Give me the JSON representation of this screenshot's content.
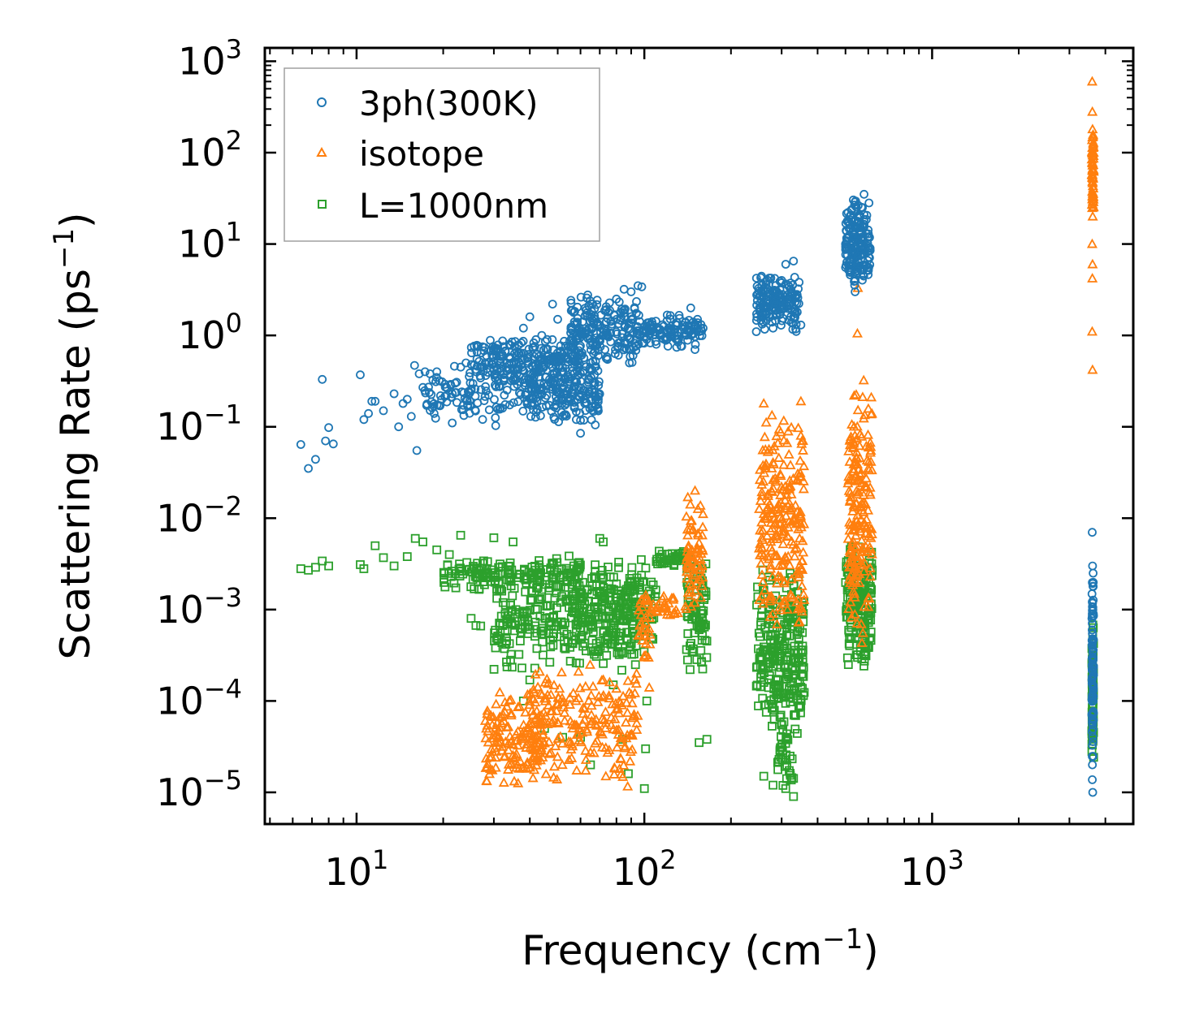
{
  "chart_data": {
    "type": "scatter",
    "xscale": "log",
    "yscale": "log",
    "xlabel": "Frequency (cm",
    "xlabel_sup": "−1",
    "xlabel_end": ")",
    "ylabel": "Scattering Rate (ps",
    "ylabel_sup": "−1",
    "ylabel_end": ")",
    "xlim": [
      4.8,
      5000
    ],
    "ylim": [
      4.5e-06,
      1400
    ],
    "x_ticks": [
      {
        "value": 10,
        "base": "10",
        "exp": "1"
      },
      {
        "value": 100,
        "base": "10",
        "exp": "2"
      },
      {
        "value": 1000,
        "base": "10",
        "exp": "3"
      }
    ],
    "y_ticks": [
      {
        "value": 1000,
        "base": "10",
        "exp": "3"
      },
      {
        "value": 100,
        "base": "10",
        "exp": "2"
      },
      {
        "value": 10,
        "base": "10",
        "exp": "1"
      },
      {
        "value": 1,
        "base": "10",
        "exp": "0"
      },
      {
        "value": 0.1,
        "base": "10",
        "exp": "−1"
      },
      {
        "value": 0.01,
        "base": "10",
        "exp": "−2"
      },
      {
        "value": 0.001,
        "base": "10",
        "exp": "−3"
      },
      {
        "value": 0.0001,
        "base": "10",
        "exp": "−4"
      },
      {
        "value": 1e-05,
        "base": "10",
        "exp": "−5"
      }
    ],
    "legend_position": "top-left",
    "series": [
      {
        "name": "3ph(300K)",
        "marker": "circle",
        "color": "#1f77b4",
        "points": [
          [
            6.4,
            0.064
          ],
          [
            6.8,
            0.035
          ],
          [
            7.2,
            0.044
          ],
          [
            7.6,
            0.33
          ],
          [
            7.8,
            0.07
          ],
          [
            8.0,
            0.098
          ],
          [
            8.3,
            0.065
          ],
          [
            10.3,
            0.37
          ],
          [
            10.6,
            0.12
          ],
          [
            11.0,
            0.14
          ],
          [
            11.3,
            0.19
          ],
          [
            11.6,
            0.19
          ],
          [
            12.4,
            0.15
          ],
          [
            13.5,
            0.23
          ],
          [
            14.0,
            0.1
          ],
          [
            14.5,
            0.18
          ],
          [
            15.0,
            0.2
          ],
          [
            15.5,
            0.13
          ],
          [
            15.9,
            0.47
          ],
          [
            16.2,
            0.055
          ],
          [
            16.5,
            0.38
          ],
          [
            17.0,
            0.27
          ],
          [
            17.3,
            0.4
          ],
          [
            18.0,
            0.38
          ],
          [
            18.6,
            0.14
          ],
          [
            19.0,
            0.4
          ],
          [
            19.5,
            0.17
          ],
          [
            20.5,
            0.22
          ],
          [
            21.5,
            0.11
          ],
          [
            22.0,
            0.3
          ],
          [
            23.0,
            0.45
          ],
          [
            24.0,
            0.5
          ],
          [
            25.0,
            0.25
          ],
          [
            26.0,
            0.4
          ],
          [
            27.0,
            0.45
          ],
          [
            28.0,
            0.5
          ],
          [
            30.0,
            0.42
          ],
          [
            32.0,
            0.6
          ],
          [
            34.0,
            0.8
          ],
          [
            36.0,
            0.5
          ],
          [
            38.0,
            1.2
          ],
          [
            40.0,
            1.6
          ],
          [
            42.0,
            0.9
          ],
          [
            44.0,
            1.0
          ],
          [
            46.0,
            0.7
          ],
          [
            48.0,
            2.2
          ],
          [
            50.0,
            1.5
          ],
          [
            52.0,
            0.4
          ],
          [
            55.0,
            0.2
          ],
          [
            58.0,
            0.12
          ],
          [
            60.0,
            0.085
          ],
          [
            62.0,
            0.25
          ],
          [
            65.0,
            0.5
          ],
          [
            70.0,
            0.9
          ],
          [
            75.0,
            1.8
          ],
          [
            80.0,
            2.5
          ],
          [
            85.0,
            3.2
          ],
          [
            90.0,
            3.0
          ],
          [
            95.0,
            3.5
          ],
          [
            98.0,
            3.4
          ],
          [
            105.0,
            1.2
          ],
          [
            110.0,
            0.8
          ],
          [
            120.0,
            1.1
          ],
          [
            130.0,
            1.3
          ],
          [
            140.0,
            1.0
          ],
          [
            145.0,
            2.0
          ],
          [
            150.0,
            0.7
          ],
          [
            155.0,
            1.1
          ],
          [
            160.0,
            1.2
          ],
          [
            245.0,
            1.1
          ],
          [
            260.0,
            2.0
          ],
          [
            280.0,
            1.2
          ],
          [
            300.0,
            4.0
          ],
          [
            310.0,
            6.0
          ],
          [
            320.0,
            2.5
          ],
          [
            330.0,
            6.5
          ],
          [
            340.0,
            1.8
          ],
          [
            350.0,
            1.3
          ],
          [
            500.0,
            10.0
          ],
          [
            520.0,
            15.0
          ],
          [
            540.0,
            3.0
          ],
          [
            560.0,
            20.0
          ],
          [
            580.0,
            35.0
          ],
          [
            600.0,
            12.0
          ],
          [
            3600.0,
            0.007
          ],
          [
            3610.0,
            0.003
          ],
          [
            3620.0,
            0.001
          ],
          [
            3630.0,
            0.0001
          ],
          [
            3605.0,
            2e-05
          ],
          [
            3615.0,
            1e-05
          ]
        ],
        "clusters": [
          {
            "x": [
              17,
              40
            ],
            "y": [
              0.1,
              0.5
            ],
            "n": 110
          },
          {
            "x": [
              25,
              60
            ],
            "y": [
              0.25,
              1.0
            ],
            "n": 220
          },
          {
            "x": [
              40,
              70
            ],
            "y": [
              0.1,
              0.6
            ],
            "n": 200
          },
          {
            "x": [
              55,
              95
            ],
            "y": [
              0.4,
              3.0
            ],
            "n": 200
          },
          {
            "x": [
              95,
              160
            ],
            "y": [
              0.7,
              1.8
            ],
            "n": 110
          },
          {
            "x": [
              245,
              345
            ],
            "y": [
              1.0,
              5.0
            ],
            "n": 160
          },
          {
            "x": [
              500,
              610
            ],
            "y": [
              3.0,
              35.0
            ],
            "n": 180
          },
          {
            "x": [
              3590,
              3640
            ],
            "y": [
              1e-05,
              0.006
            ],
            "n": 90
          }
        ]
      },
      {
        "name": "isotope",
        "marker": "triangle",
        "color": "#ff7f0e",
        "points": [
          [
            3600,
            600
          ],
          [
            3605,
            280
          ],
          [
            3610,
            180
          ],
          [
            3600,
            100
          ],
          [
            3615,
            20
          ],
          [
            3600,
            10
          ],
          [
            3610,
            6
          ],
          [
            3605,
            4.2
          ],
          [
            3600,
            1.1
          ],
          [
            3610,
            0.42
          ],
          [
            550,
            1.05
          ],
          [
            552,
            3.3
          ],
          [
            350,
            0.19
          ],
          [
            352,
            0.065
          ],
          [
            260,
            0.18
          ],
          [
            150,
            0.02
          ],
          [
            100,
            0.0003
          ],
          [
            104,
            0.00014
          ]
        ],
        "clusters": [
          {
            "x": [
              3590,
              3640
            ],
            "y": [
              20,
              200
            ],
            "n": 60
          },
          {
            "x": [
              28,
              45
            ],
            "y": [
              1e-05,
              0.00015
            ],
            "n": 140
          },
          {
            "x": [
              40,
              95
            ],
            "y": [
              1e-05,
              0.0003
            ],
            "n": 220
          },
          {
            "x": [
              95,
              105
            ],
            "y": [
              0.0002,
              0.002
            ],
            "n": 30
          },
          {
            "x": [
              140,
              160
            ],
            "y": [
              0.0008,
              0.02
            ],
            "n": 70
          },
          {
            "x": [
              250,
              360
            ],
            "y": [
              0.0005,
              0.15
            ],
            "n": 240
          },
          {
            "x": [
              510,
              620
            ],
            "y": [
              0.0004,
              0.4
            ],
            "n": 190
          },
          {
            "x": [
              105,
              140
            ],
            "y": [
              0.0008,
              0.0015
            ],
            "n": 30
          }
        ]
      },
      {
        "name": "L=1000nm",
        "marker": "square",
        "color": "#2ca02c",
        "points": [
          [
            6.4,
            0.0028
          ],
          [
            6.8,
            0.0027
          ],
          [
            7.2,
            0.0029
          ],
          [
            7.6,
            0.0034
          ],
          [
            8.0,
            0.003
          ],
          [
            10.3,
            0.0031
          ],
          [
            10.6,
            0.0028
          ],
          [
            11.6,
            0.005
          ],
          [
            12.4,
            0.0037
          ],
          [
            13.5,
            0.003
          ],
          [
            15.0,
            0.0038
          ],
          [
            16.0,
            0.006
          ],
          [
            17.0,
            0.0055
          ],
          [
            19.0,
            0.0045
          ],
          [
            21.0,
            0.004
          ],
          [
            23.0,
            0.0065
          ],
          [
            25.0,
            0.0008
          ],
          [
            26.0,
            0.00067
          ],
          [
            27.0,
            0.00066
          ],
          [
            30.0,
            0.0061
          ],
          [
            35.0,
            0.0055
          ],
          [
            38.0,
            0.0001
          ],
          [
            40.0,
            0.00017
          ],
          [
            45.0,
            5e-05
          ],
          [
            52.0,
            4e-05
          ],
          [
            60.0,
            4e-05
          ],
          [
            65.0,
            2e-05
          ],
          [
            70.0,
            0.006
          ],
          [
            72.0,
            0.0055
          ],
          [
            78.0,
            0.00015
          ],
          [
            84.0,
            3.8e-05
          ],
          [
            88.0,
            1.6e-05
          ],
          [
            100.0,
            1.1e-05
          ],
          [
            101.0,
            3e-05
          ],
          [
            102.0,
            0.0001
          ],
          [
            155.0,
            3.5e-05
          ],
          [
            165.0,
            3.8e-05
          ],
          [
            260.0,
            1.5e-05
          ],
          [
            280.0,
            1.2e-05
          ],
          [
            310.0,
            1.1e-05
          ],
          [
            330.0,
            9e-06
          ]
        ],
        "clusters": [
          {
            "x": [
              20,
              60
            ],
            "y": [
              0.0015,
              0.004
            ],
            "n": 160
          },
          {
            "x": [
              30,
              100
            ],
            "y": [
              0.0002,
              0.003
            ],
            "n": 300
          },
          {
            "x": [
              55,
              110
            ],
            "y": [
              0.0003,
              0.004
            ],
            "n": 160
          },
          {
            "x": [
              110,
              145
            ],
            "y": [
              0.003,
              0.0045
            ],
            "n": 50
          },
          {
            "x": [
              140,
              165
            ],
            "y": [
              0.0002,
              0.004
            ],
            "n": 90
          },
          {
            "x": [
              245,
              360
            ],
            "y": [
              3e-05,
              0.003
            ],
            "n": 260
          },
          {
            "x": [
              290,
              330
            ],
            "y": [
              1e-05,
              5e-05
            ],
            "n": 30
          },
          {
            "x": [
              500,
              620
            ],
            "y": [
              0.0002,
              0.006
            ],
            "n": 180
          },
          {
            "x": [
              3590,
              3640
            ],
            "y": [
              2e-05,
              0.0008
            ],
            "n": 80
          }
        ]
      }
    ]
  }
}
